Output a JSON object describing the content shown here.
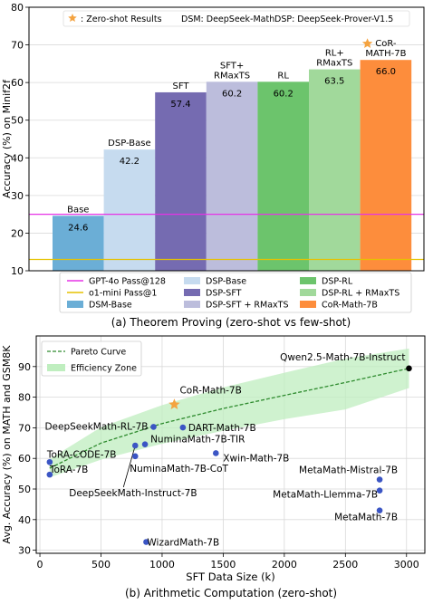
{
  "colors": {
    "gpt_line": "#e633e6",
    "o1_line": "#e6c200",
    "star": "#f4a340",
    "pareto": "#2e8b2e",
    "zone": "#bfeebf",
    "point": "#3b55c4",
    "point_dark": "#000000"
  },
  "chart_data": [
    {
      "type": "bar",
      "ylabel": "Accuracy (%) on Minif2f",
      "ylim": [
        10,
        80
      ],
      "yticks": [
        10,
        20,
        30,
        40,
        50,
        60,
        70,
        80
      ],
      "grid": true,
      "caption": "(a) Theorem Proving (zero-shot vs few-shot)",
      "annotation": {
        "star_label": "Zero-shot Results",
        "abbrev_1": "DSM: DeepSeek-Math",
        "abbrev_2": "DSP: DeepSeek-Prover-V1.5"
      },
      "bars": [
        {
          "top_label": "Base",
          "value": 24.6,
          "value_label": "24.6",
          "legend": "DSM-Base",
          "color": "#6baed6"
        },
        {
          "top_label": "DSP-Base",
          "value": 42.2,
          "value_label": "42.2",
          "legend": "DSP-Base",
          "color": "#c6dbef"
        },
        {
          "top_label": "SFT",
          "value": 57.4,
          "value_label": "57.4",
          "legend": "DSP-SFT",
          "color": "#756bb1"
        },
        {
          "top_label": "SFT+\nRMaxTS",
          "value": 60.2,
          "value_label": "60.2",
          "legend": "DSP-SFT + RMaxTS",
          "color": "#bcbddc"
        },
        {
          "top_label": "RL",
          "value": 60.2,
          "value_label": "60.2",
          "legend": "DSP-RL",
          "color": "#6cc46c"
        },
        {
          "top_label": "RL+\nRMaxTS",
          "value": 63.5,
          "value_label": "63.5",
          "legend": "DSP-RL + RMaxTS",
          "color": "#a1d99b"
        },
        {
          "top_label": "CoR-\nMATH-7B",
          "value": 66.0,
          "value_label": "66.0",
          "legend": "CoR-Math-7B",
          "color": "#fd8d3c",
          "star": true
        }
      ],
      "hlines": [
        {
          "name": "GPT-4o Pass@128",
          "value": 25.0
        },
        {
          "name": "o1-mini Pass@1",
          "value": 13.0
        }
      ]
    },
    {
      "type": "scatter",
      "xlabel": "SFT Data Size (k)",
      "ylabel": "Avg. Accuracy (%) on MATH and GSM8K",
      "xlim": [
        -30,
        3150
      ],
      "ylim": [
        29,
        100
      ],
      "xticks": [
        0,
        500,
        1000,
        1500,
        2000,
        2500,
        3000
      ],
      "yticks": [
        30,
        40,
        50,
        60,
        70,
        80,
        90
      ],
      "grid": true,
      "caption": "(b) Arithmetic Computation (zero-shot)",
      "legend": {
        "curve": "Pareto Curve",
        "zone": "Efficiency Zone",
        "placement": "top-left"
      },
      "points": [
        {
          "label": "ToRA-CODE-7B",
          "x": 80,
          "y": 58.8
        },
        {
          "label": "ToRA-7B",
          "x": 80,
          "y": 54.7
        },
        {
          "label": "DeepSeekMath-RL-7B",
          "x": 930,
          "y": 70.3
        },
        {
          "label": "DART-Math-7B",
          "x": 1170,
          "y": 70.1
        },
        {
          "label": "NuminaMath-7B-TIR",
          "x": 860,
          "y": 64.6
        },
        {
          "label": "DeepSeekMath-Instruct-7B",
          "x": 780,
          "y": 64.2
        },
        {
          "label": "NuminaMath-7B-CoT",
          "x": 780,
          "y": 60.7
        },
        {
          "label": "Xwin-Math-7B",
          "x": 1440,
          "y": 61.7
        },
        {
          "label": "Qwen2.5-Math-7B-Instruct",
          "x": 3020,
          "y": 89.4,
          "dark": true
        },
        {
          "label": "MetaMath-Mistral-7B",
          "x": 2780,
          "y": 53.1
        },
        {
          "label": "MetaMath-Llemma-7B",
          "x": 2780,
          "y": 49.5
        },
        {
          "label": "MetaMath-7B",
          "x": 2780,
          "y": 43.0
        },
        {
          "label": "WizardMath-7B",
          "x": 870,
          "y": 32.7
        },
        {
          "label": "CoR-Math-7B",
          "x": 1100,
          "y": 77.6,
          "star": true
        }
      ],
      "pareto": {
        "x": [
          80,
          500,
          1000,
          1500,
          2000,
          2500,
          3020
        ],
        "y": [
          56.8,
          65.0,
          71.4,
          76.3,
          80.6,
          84.8,
          89.4
        ]
      },
      "zone": {
        "x": [
          80,
          500,
          1000,
          1500,
          2000,
          2500,
          3020
        ],
        "lower": [
          53.8,
          59.6,
          64.8,
          69.0,
          72.8,
          76.0,
          83.0
        ],
        "upper": [
          59.8,
          70.2,
          77.4,
          83.2,
          88.0,
          92.6,
          95.9
        ]
      }
    }
  ]
}
